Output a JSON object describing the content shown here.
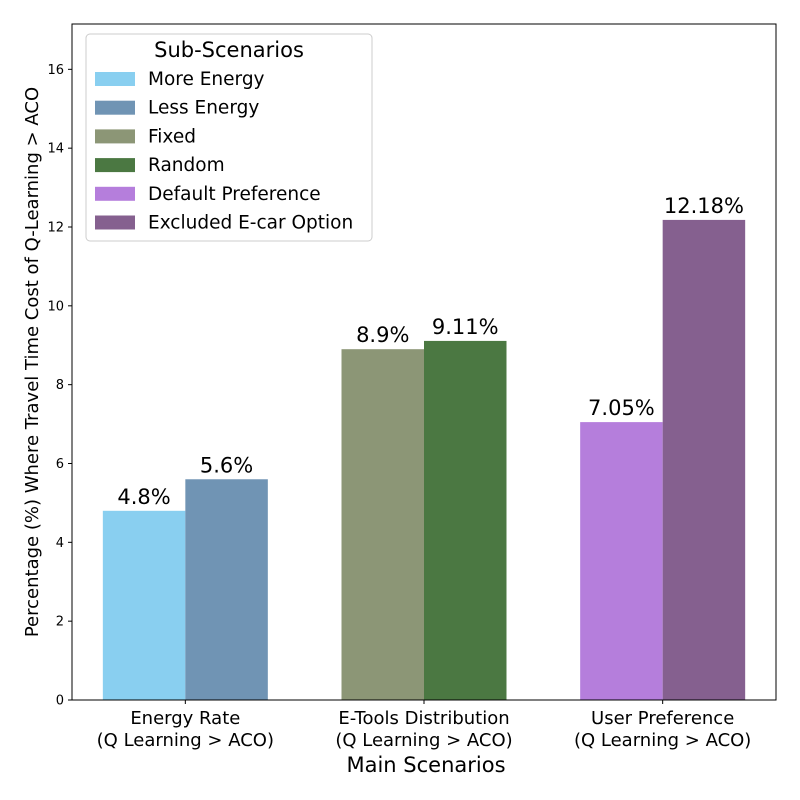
{
  "chart_data": {
    "type": "bar",
    "xlabel": "Main Scenarios",
    "ylabel": "Percentage (%) Where Travel Time Cost of Q-Learning > ACO",
    "ylim": [
      0,
      17.15
    ],
    "yticks": [
      0,
      2,
      4,
      6,
      8,
      10,
      12,
      14,
      16
    ],
    "grid": false,
    "legend": {
      "title": "Sub-Scenarios",
      "placement": "top-left"
    },
    "groups": [
      {
        "label_line1": "Energy Rate",
        "label_line2": "(Q Learning > ACO)",
        "bars": [
          {
            "name": "More Energy",
            "value": 4.8,
            "label": "4.8%",
            "color": "#89CFF0"
          },
          {
            "name": "Less Energy",
            "value": 5.6,
            "label": "5.6%",
            "color": "#7094B4"
          }
        ]
      },
      {
        "label_line1": "E-Tools Distribution",
        "label_line2": "(Q Learning > ACO)",
        "bars": [
          {
            "name": "Fixed",
            "value": 8.9,
            "label": "8.9%",
            "color": "#8C9676"
          },
          {
            "name": "Random",
            "value": 9.11,
            "label": "9.11%",
            "color": "#4B7842"
          }
        ]
      },
      {
        "label_line1": "User Preference",
        "label_line2": "(Q Learning > ACO)",
        "bars": [
          {
            "name": "Default Preference",
            "value": 7.05,
            "label": "7.05%",
            "color": "#B57EDC"
          },
          {
            "name": "Excluded E-car Option",
            "value": 12.18,
            "label": "12.18%",
            "color": "#85608F"
          }
        ]
      }
    ]
  }
}
